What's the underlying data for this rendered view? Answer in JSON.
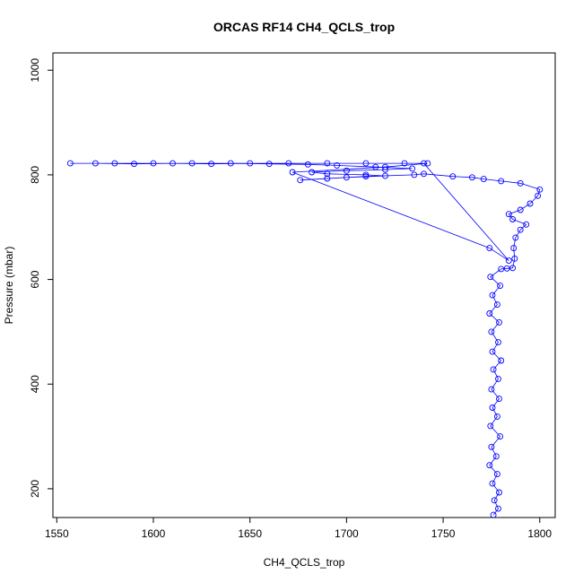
{
  "chart_data": {
    "type": "scatter",
    "title": "ORCAS RF14 CH4_QCLS_trop",
    "xlabel": "CH4_QCLS_trop",
    "ylabel": "Pressure (mbar)",
    "xlim": [
      1548,
      1808
    ],
    "ylim": [
      1033,
      145
    ],
    "y_reversed": true,
    "x_ticks": [
      1550,
      1600,
      1650,
      1700,
      1750,
      1800
    ],
    "y_ticks": [
      200,
      400,
      600,
      800,
      1000
    ],
    "x_tick_labels": [
      "1550",
      "1600",
      "1650",
      "1700",
      "1750",
      "1800"
    ],
    "y_tick_labels": [
      "200",
      "400",
      "600",
      "800",
      "1000"
    ],
    "color": "#0000ff",
    "marker": "open-circle",
    "connected": true,
    "series": [
      {
        "values": [
          [
            1776.0,
            150
          ],
          [
            1778.5,
            162
          ],
          [
            1776.5,
            178
          ],
          [
            1779.0,
            193
          ],
          [
            1775.5,
            210
          ],
          [
            1778.0,
            228
          ],
          [
            1774.0,
            245
          ],
          [
            1777.5,
            262
          ],
          [
            1775.0,
            280
          ],
          [
            1779.5,
            300
          ],
          [
            1774.5,
            320
          ],
          [
            1778.0,
            338
          ],
          [
            1775.5,
            355
          ],
          [
            1779.0,
            372
          ],
          [
            1775.0,
            390
          ],
          [
            1778.5,
            410
          ],
          [
            1776.0,
            428
          ],
          [
            1780.0,
            445
          ],
          [
            1775.5,
            462
          ],
          [
            1778.5,
            480
          ],
          [
            1775.0,
            500
          ],
          [
            1779.0,
            518
          ],
          [
            1774.0,
            535
          ],
          [
            1778.0,
            552
          ],
          [
            1775.5,
            570
          ],
          [
            1779.5,
            588
          ],
          [
            1774.5,
            605
          ],
          [
            1780.0,
            620
          ],
          [
            1783.0,
            621
          ],
          [
            1786.0,
            622
          ],
          [
            1787.0,
            640
          ],
          [
            1786.5,
            660
          ],
          [
            1787.5,
            680
          ],
          [
            1790.0,
            695
          ],
          [
            1793.0,
            705
          ],
          [
            1786.0,
            715
          ],
          [
            1784.0,
            725
          ],
          [
            1790.0,
            733
          ],
          [
            1795.0,
            745
          ],
          [
            1799.0,
            760
          ],
          [
            1800.0,
            772
          ],
          [
            1790.0,
            784
          ],
          [
            1780.0,
            788
          ],
          [
            1771.0,
            792
          ],
          [
            1765.0,
            795
          ],
          [
            1755.0,
            797
          ],
          [
            1740.0,
            802
          ],
          [
            1735.0,
            800
          ],
          [
            1710.0,
            797
          ],
          [
            1690.0,
            793
          ],
          [
            1676.0,
            790
          ],
          [
            1700.0,
            795
          ],
          [
            1720.0,
            798
          ],
          [
            1710.0,
            800
          ],
          [
            1690.0,
            802
          ],
          [
            1682.0,
            805
          ],
          [
            1700.0,
            808
          ],
          [
            1720.0,
            810
          ],
          [
            1734.0,
            812
          ],
          [
            1715.0,
            815
          ],
          [
            1695.0,
            818
          ],
          [
            1680.0,
            820
          ],
          [
            1660.0,
            821
          ],
          [
            1640.0,
            822
          ],
          [
            1620.0,
            822
          ],
          [
            1600.0,
            822
          ],
          [
            1580.0,
            822
          ],
          [
            1557.0,
            822
          ],
          [
            1570.0,
            822
          ],
          [
            1590.0,
            821
          ],
          [
            1610.0,
            822
          ],
          [
            1630.0,
            821
          ],
          [
            1650.0,
            822
          ],
          [
            1670.0,
            822
          ],
          [
            1690.0,
            822
          ],
          [
            1710.0,
            822
          ],
          [
            1730.0,
            822
          ],
          [
            1740.0,
            822
          ],
          [
            1784.0,
            636
          ],
          [
            1774.0,
            660
          ],
          [
            1672.0,
            805
          ],
          [
            1720.0,
            815
          ],
          [
            1742.0,
            822
          ]
        ]
      }
    ]
  }
}
